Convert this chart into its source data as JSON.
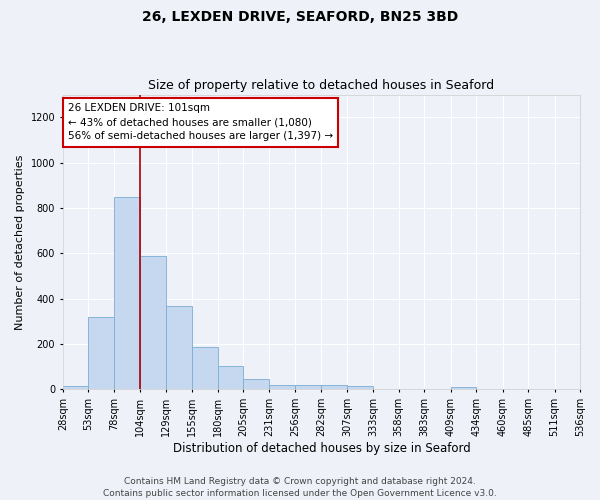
{
  "title1": "26, LEXDEN DRIVE, SEAFORD, BN25 3BD",
  "title2": "Size of property relative to detached houses in Seaford",
  "xlabel": "Distribution of detached houses by size in Seaford",
  "ylabel": "Number of detached properties",
  "footer1": "Contains HM Land Registry data © Crown copyright and database right 2024.",
  "footer2": "Contains public sector information licensed under the Open Government Licence v3.0.",
  "annotation_title": "26 LEXDEN DRIVE: 101sqm",
  "annotation_line1": "← 43% of detached houses are smaller (1,080)",
  "annotation_line2": "56% of semi-detached houses are larger (1,397) →",
  "bar_color": "#c5d8ef",
  "bar_edge_color": "#7aadd4",
  "vline_color": "#aa0000",
  "vline_x": 104,
  "bin_edges": [
    28,
    53,
    78,
    104,
    129,
    155,
    180,
    205,
    231,
    256,
    282,
    307,
    333,
    358,
    383,
    409,
    434,
    460,
    485,
    511,
    536
  ],
  "bar_values": [
    15,
    320,
    850,
    590,
    370,
    185,
    105,
    45,
    20,
    18,
    18,
    15,
    0,
    0,
    0,
    12,
    0,
    0,
    0,
    0
  ],
  "ylim": [
    0,
    1300
  ],
  "yticks": [
    0,
    200,
    400,
    600,
    800,
    1000,
    1200
  ],
  "background_color": "#eef2f8",
  "plot_background": "#eef2f8",
  "grid_color": "#ffffff",
  "title1_fontsize": 10,
  "title2_fontsize": 9,
  "xlabel_fontsize": 8.5,
  "ylabel_fontsize": 8,
  "tick_fontsize": 7,
  "footer_fontsize": 6.5,
  "annot_fontsize": 7.5,
  "annot_box_color": "#ffffff",
  "annot_border_color": "#cc0000"
}
